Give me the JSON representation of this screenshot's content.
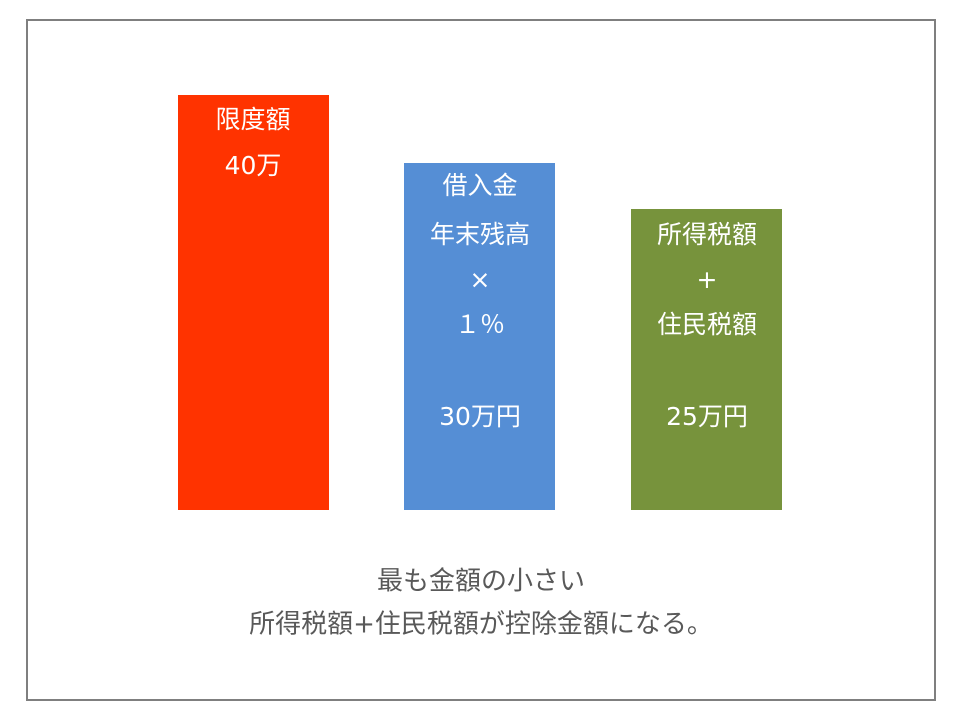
{
  "bars": [
    {
      "label": [
        "限度額"
      ],
      "amount": "40万"
    },
    {
      "label": [
        "借入金",
        "年末残高",
        "×",
        "１％"
      ],
      "amount": "30万円"
    },
    {
      "label": [
        "所得税額",
        "+",
        "住民税額"
      ],
      "amount": "25万円"
    }
  ],
  "caption": [
    "最も金額の小さい",
    "所得税額+住民税額が控除金額になる。"
  ]
}
